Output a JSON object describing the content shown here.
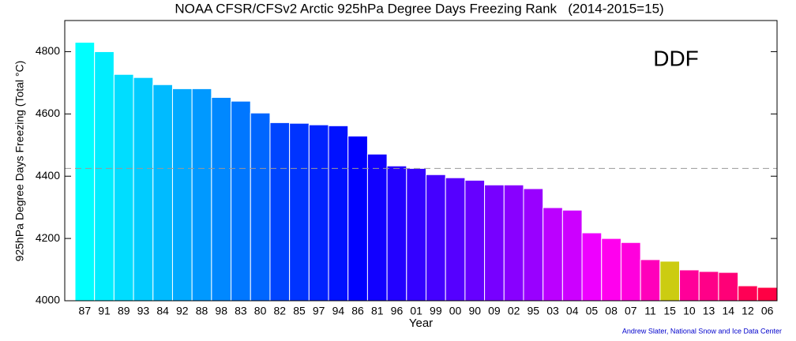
{
  "chart_data": {
    "type": "bar",
    "title": "NOAA CFSR/CFSv2 Arctic 925hPa Degree Days Freezing Rank   (2014-2015=15)",
    "x_label": "Year",
    "y_label": "925hPa Degree Days Freezing (Total °C)",
    "annotation": "DDF",
    "credit": "Andrew Slater, National Snow and Ice Data Center",
    "categories": [
      "87",
      "91",
      "89",
      "93",
      "84",
      "92",
      "88",
      "98",
      "83",
      "80",
      "82",
      "85",
      "97",
      "94",
      "86",
      "81",
      "96",
      "01",
      "99",
      "00",
      "90",
      "09",
      "02",
      "95",
      "03",
      "04",
      "05",
      "08",
      "07",
      "11",
      "15",
      "10",
      "13",
      "14",
      "12",
      "06"
    ],
    "values": [
      4830,
      4800,
      4727,
      4717,
      4694,
      4681,
      4681,
      4653,
      4641,
      4603,
      4572,
      4570,
      4565,
      4562,
      4529,
      4471,
      4433,
      4425,
      4405,
      4395,
      4387,
      4372,
      4372,
      4360,
      4299,
      4291,
      4218,
      4200,
      4187,
      4132,
      4127,
      4099,
      4094,
      4091,
      4048,
      4043
    ],
    "colors": [
      "#00ffff",
      "#00eeff",
      "#00ddff",
      "#00ccff",
      "#00bbff",
      "#00aaff",
      "#0099ff",
      "#0088ff",
      "#0077ff",
      "#0066ff",
      "#0044ff",
      "#0033ff",
      "#0022ff",
      "#0011ff",
      "#0000ff",
      "#1100ff",
      "#2200ff",
      "#3300ff",
      "#4400ff",
      "#5500ff",
      "#6600ff",
      "#7700ff",
      "#8800ff",
      "#9900ff",
      "#bb00ff",
      "#cc00ff",
      "#ee00ff",
      "#ff00ee",
      "#ff00dd",
      "#ff00bb",
      "#cccc11",
      "#ff0099",
      "#ff0088",
      "#ff0077",
      "#ff0055",
      "#ff0044"
    ],
    "reference_line": 4425,
    "ylim": [
      4000,
      4900
    ],
    "yticks": [
      4000,
      4200,
      4400,
      4600,
      4800
    ]
  }
}
